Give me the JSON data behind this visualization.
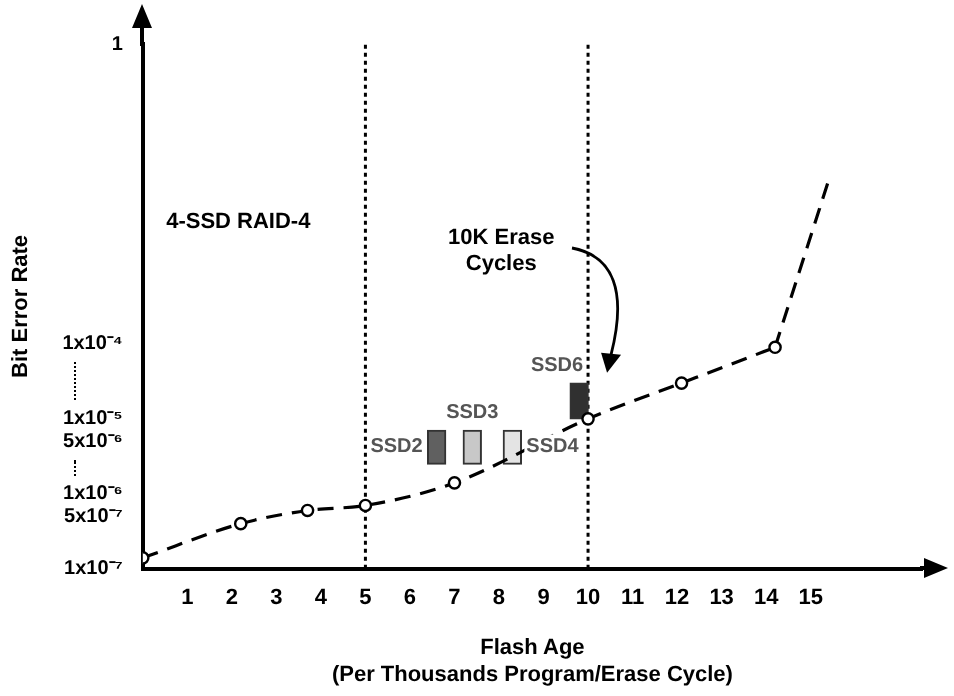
{
  "chart_data": {
    "type": "line",
    "xlabel": "Flash Age\n(Per Thousands Program/Erase Cycle)",
    "ylabel": "Bit Error Rate",
    "xlim": [
      0,
      17.5
    ],
    "xticks": [
      1,
      2,
      3,
      4,
      5,
      6,
      7,
      8,
      9,
      10,
      11,
      12,
      13,
      14,
      15
    ],
    "ylim": [
      1e-07,
      1
    ],
    "yticks": [
      {
        "value": 1e-07,
        "label": "1x10⁻⁷"
      },
      {
        "value": 5e-07,
        "label": "5x10⁻⁷"
      },
      {
        "value": 1e-06,
        "label": "1x10⁻⁶"
      },
      {
        "value": 5e-06,
        "label": "5x10⁻⁶"
      },
      {
        "value": 1e-05,
        "label": "1x10⁻⁵"
      },
      {
        "value": 0.0001,
        "label": "1x10⁻⁴"
      },
      1
    ],
    "log": true,
    "grid": false,
    "legend": false,
    "line_style": "dashed",
    "series": [
      {
        "color": "#000000",
        "marker": "circle",
        "x": [
          0,
          2.2,
          3.7,
          5,
          7,
          10,
          12.1,
          14.2
        ],
        "values": [
          1.4e-07,
          4e-07,
          6e-07,
          7e-07,
          1.4e-06,
          1e-05,
          3e-05,
          9e-05
        ]
      },
      {
        "color": "#000000",
        "marker": "none",
        "x": [
          14.2,
          15.4
        ],
        "values": [
          9e-05,
          0.015
        ]
      },
      {
        "type": "bar",
        "name": "SSD2",
        "color": "#606060",
        "x": [
          6.6
        ],
        "base": [
          2.5e-06
        ],
        "values": [
          4.5e-06
        ]
      },
      {
        "type": "bar",
        "name": "SSD3",
        "color": "#c8c8c8",
        "x": [
          7.4
        ],
        "base": [
          2.5e-06
        ],
        "values": [
          4.5e-06
        ]
      },
      {
        "type": "bar",
        "name": "SSD4",
        "color": "#e4e4e4",
        "x": [
          8.3
        ],
        "base": [
          2.5e-06
        ],
        "values": [
          4.5e-06
        ]
      },
      {
        "type": "bar",
        "name": "SSD6",
        "color": "#303030",
        "x": [
          9.8
        ],
        "base": [
          1e-05
        ],
        "values": [
          2e-05
        ]
      }
    ],
    "ref_lines": [
      {
        "axis": "x",
        "value": 5,
        "line_style": "dotted",
        "color": "#000000"
      },
      {
        "axis": "x",
        "value": 10,
        "line_style": "dotted",
        "color": "#000000"
      }
    ],
    "annotations": [
      "4-SSD RAID-4",
      "10K Erase Cycles"
    ]
  }
}
